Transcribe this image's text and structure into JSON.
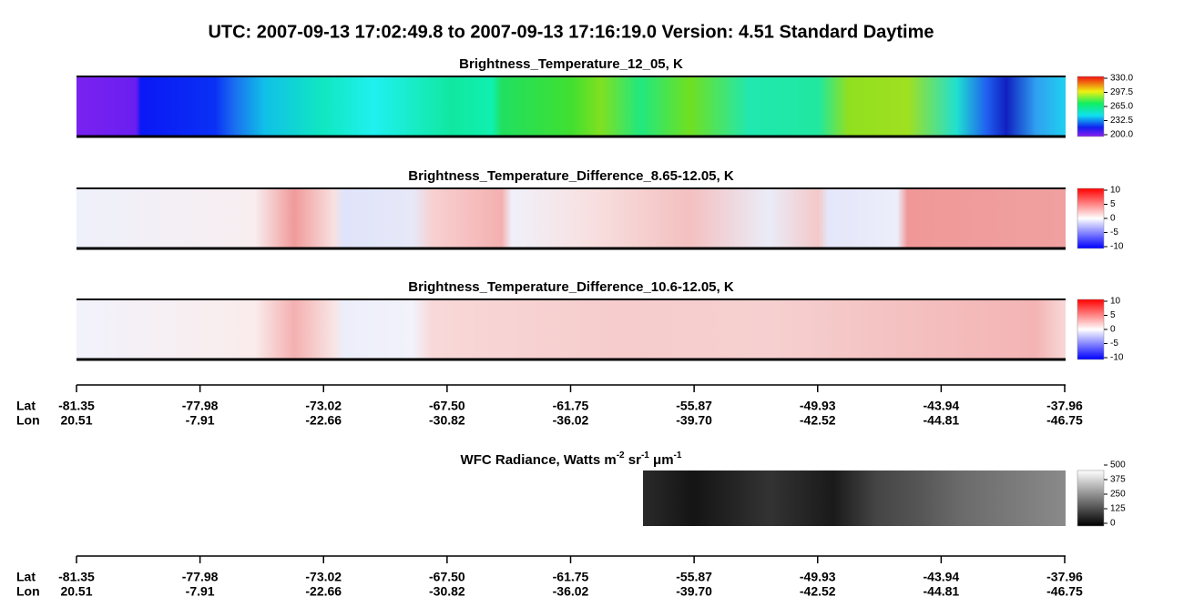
{
  "title": "UTC:  2007-09-13   17:02:49.8  to  2007-09-13   17:16:19.0    Version: 4.51  Standard Daytime",
  "panels": [
    {
      "title": "Brightness_Temperature_12_05, K",
      "colorbar": [
        "330.0",
        "297.5",
        "265.0",
        "232.5",
        "200.0"
      ]
    },
    {
      "title": "Brightness_Temperature_Difference_8.65-12.05, K",
      "colorbar": [
        "10",
        "5",
        "0",
        "-5",
        "-10"
      ]
    },
    {
      "title": "Brightness_Temperature_Difference_10.6-12.05, K",
      "colorbar": [
        "10",
        "5",
        "0",
        "-5",
        "-10"
      ]
    }
  ],
  "axes": [
    {
      "lat_label": "Lat",
      "lon_label": "Lon",
      "lat": [
        "-81.35",
        "-77.98",
        "-73.02",
        "-67.50",
        "-61.75",
        "-55.87",
        "-49.93",
        "-43.94",
        "-37.96"
      ],
      "lon": [
        "20.51",
        "-7.91",
        "-22.66",
        "-30.82",
        "-36.02",
        "-39.70",
        "-42.52",
        "-44.81",
        "-46.75"
      ]
    },
    {
      "lat_label": "Lat",
      "lon_label": "Lon",
      "lat": [
        "-81.35",
        "-77.98",
        "-73.02",
        "-67.50",
        "-61.75",
        "-55.87",
        "-49.93",
        "-43.94",
        "-37.96"
      ],
      "lon": [
        "20.51",
        "-7.91",
        "-22.66",
        "-30.82",
        "-36.02",
        "-39.70",
        "-42.52",
        "-44.81",
        "-46.75"
      ]
    }
  ],
  "wfc": {
    "title_parts": [
      "WFC Radiance, Watts m",
      "-2",
      " sr",
      "-1",
      " μm",
      "-1"
    ],
    "colorbar": [
      "500",
      "375",
      "250",
      "125",
      "0"
    ]
  }
}
